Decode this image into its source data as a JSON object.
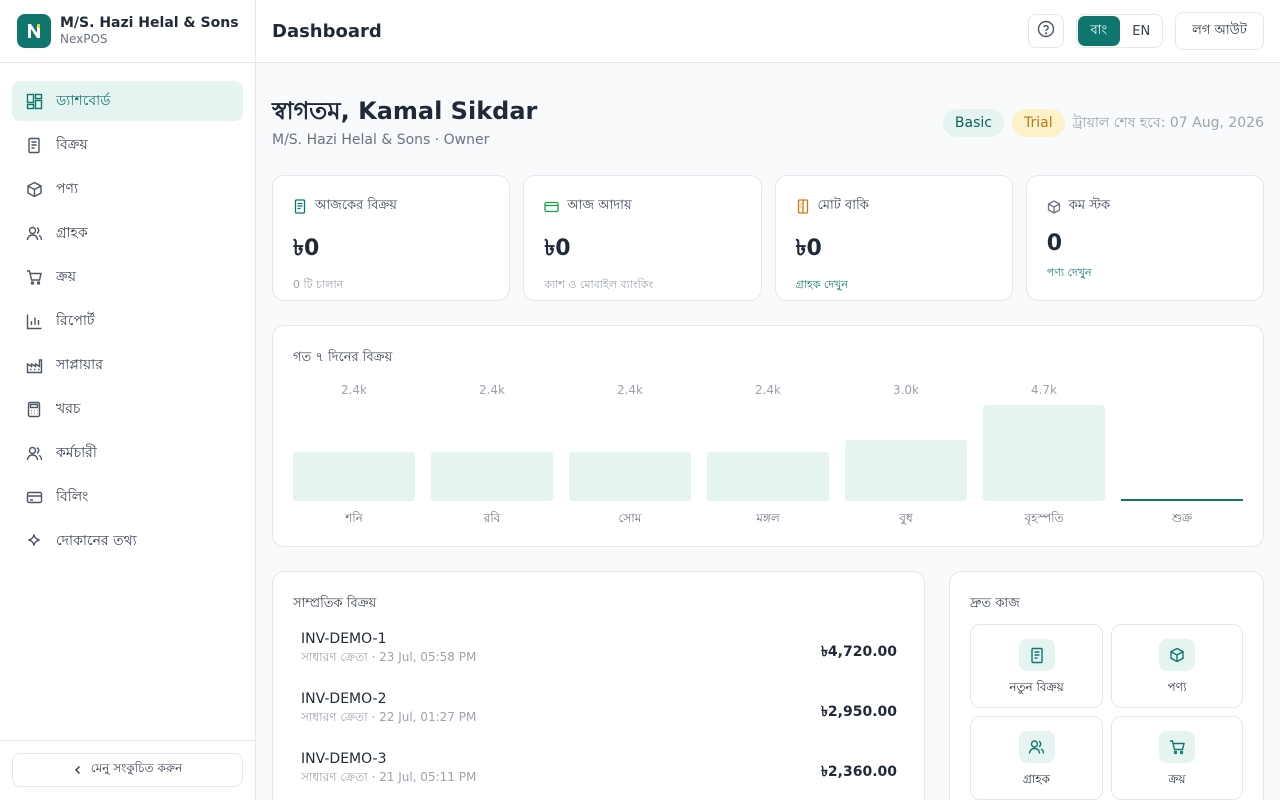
{
  "brand": {
    "name": "M/S. Hazi Helal & Sons",
    "product": "NexPOS"
  },
  "sidebar": {
    "items": [
      {
        "label": "ড্যাশবোর্ড",
        "icon": "dashboard-icon",
        "active": true
      },
      {
        "label": "বিক্রয়",
        "icon": "receipt-icon"
      },
      {
        "label": "পণ্য",
        "icon": "box-icon"
      },
      {
        "label": "গ্রাহক",
        "icon": "users-icon"
      },
      {
        "label": "ক্রয়",
        "icon": "cart-icon"
      },
      {
        "label": "রিপোর্ট",
        "icon": "bar-chart-icon"
      },
      {
        "label": "সাপ্লায়ার",
        "icon": "factory-icon"
      },
      {
        "label": "খরচ",
        "icon": "calculator-icon"
      },
      {
        "label": "কর্মচারী",
        "icon": "users-icon"
      },
      {
        "label": "বিলিং",
        "icon": "credit-card-icon"
      },
      {
        "label": "দোকানের তথ্য",
        "icon": "sparkle-icon"
      }
    ],
    "collapse_label": "মেনু সংকুচিত করুন"
  },
  "header": {
    "title": "Dashboard",
    "lang_bn": "বাং",
    "lang_en": "EN",
    "logout": "লগ আউট"
  },
  "welcome": {
    "title": "স্বাগতম, Kamal Sikdar",
    "subtitle": "M/S. Hazi Helal & Sons · Owner",
    "badge_basic": "Basic",
    "badge_trial": "Trial",
    "trial_text": "ট্রায়াল শেষ হবে: 07 Aug, 2026"
  },
  "stats": [
    {
      "label": "আজকের বিক্রয়",
      "value": "৳0",
      "note": "0 টি চালান",
      "icon": "receipt-icon"
    },
    {
      "label": "আজ আদায়",
      "value": "৳0",
      "note": "ক্যাশ ও মোবাইল ব্যাংকিং",
      "icon": "credit-card-icon"
    },
    {
      "label": "মোট বাকি",
      "value": "৳0",
      "link": "গ্রাহক দেখুন",
      "icon": "ledger-icon"
    },
    {
      "label": "কম স্টক",
      "value": "0",
      "link": "পণ্য দেখুন",
      "icon": "box-icon"
    }
  ],
  "chart": {
    "title": "গত ৭ দিনের বিক্রয়"
  },
  "chart_data": {
    "type": "bar",
    "title": "গত ৭ দিনের বিক্রয়",
    "categories": [
      "শনি",
      "রবি",
      "সোম",
      "মঙ্গল",
      "বুধ",
      "বৃহস্পতি",
      "শুক্র"
    ],
    "values": [
      2400,
      2400,
      2400,
      2400,
      3000,
      4700,
      0
    ],
    "value_labels": [
      "2.4k",
      "2.4k",
      "2.4k",
      "2.4k",
      "3.0k",
      "4.7k",
      ""
    ],
    "ylim": [
      0,
      4700
    ],
    "grid": false,
    "bar_color": "#e6f4f1",
    "baseline_color": "#0f766e"
  },
  "recent": {
    "title": "সাম্প্রতিক বিক্রয়",
    "rows": [
      {
        "id": "INV-DEMO-1",
        "meta": "সাধারণ ক্রেতা · 23 Jul, 05:58 PM",
        "amount": "৳4,720.00"
      },
      {
        "id": "INV-DEMO-2",
        "meta": "সাধারণ ক্রেতা · 22 Jul, 01:27 PM",
        "amount": "৳2,950.00"
      },
      {
        "id": "INV-DEMO-3",
        "meta": "সাধারণ ক্রেতা · 21 Jul, 05:11 PM",
        "amount": "৳2,360.00"
      }
    ]
  },
  "quick": {
    "title": "দ্রুত কাজ",
    "items": [
      {
        "label": "নতুন বিক্রয়",
        "icon": "receipt-icon"
      },
      {
        "label": "পণ্য",
        "icon": "box-icon"
      },
      {
        "label": "গ্রাহক",
        "icon": "users-icon"
      },
      {
        "label": "ক্রয়",
        "icon": "cart-icon"
      }
    ]
  },
  "colors": {
    "accent": "#0f766e",
    "accent_light": "#e6f4f1",
    "trial": "#b7791f"
  }
}
